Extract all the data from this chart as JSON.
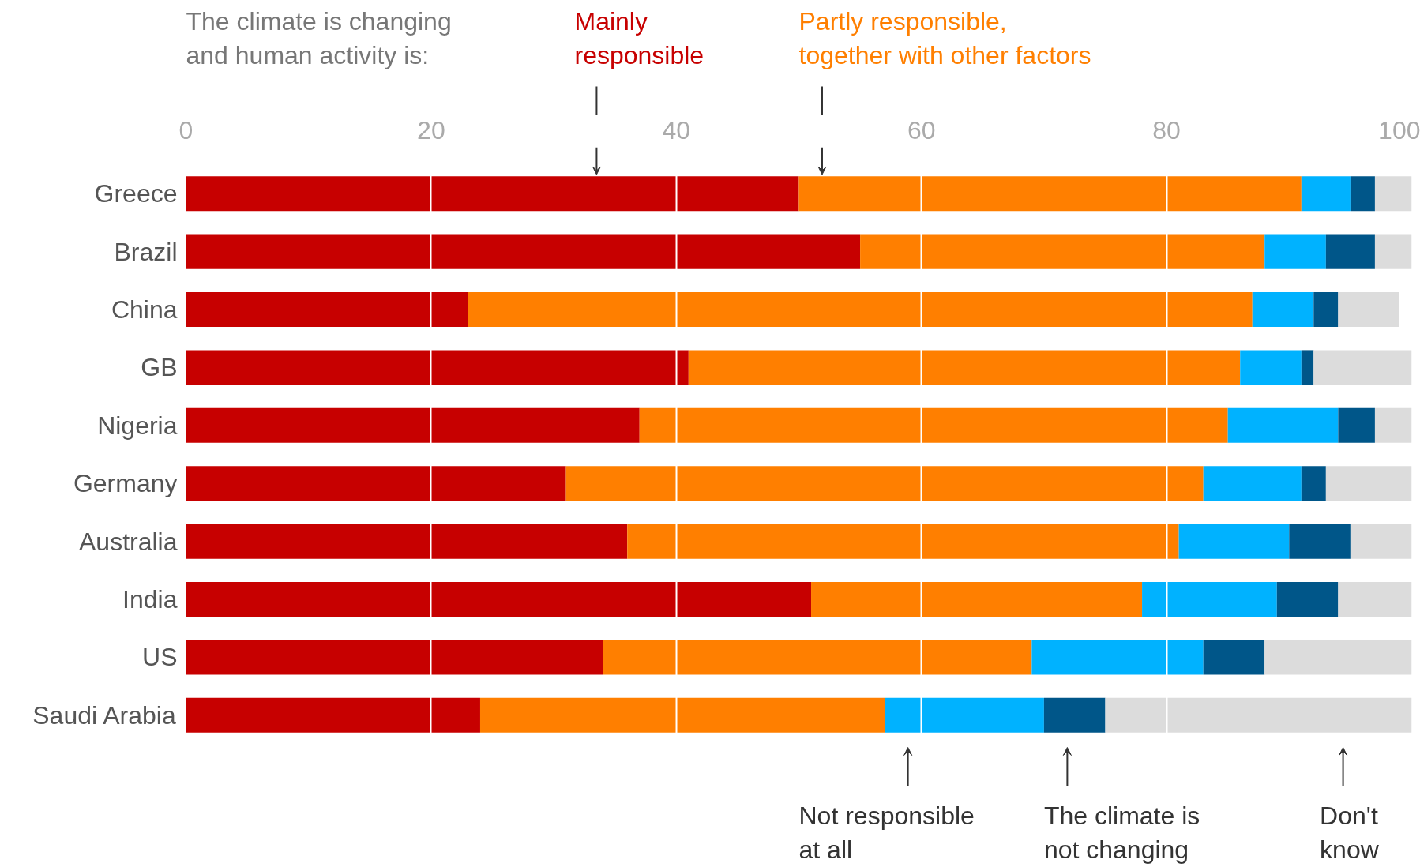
{
  "chart_data": {
    "type": "bar",
    "orientation": "horizontal",
    "stacked": true,
    "legend": false,
    "grid": "x",
    "legend_title": "The climate is changing and human activity is:",
    "categories": [
      "Greece",
      "Brazil",
      "China",
      "GB",
      "Nigeria",
      "Germany",
      "Australia",
      "India",
      "US",
      "Saudi Arabia"
    ],
    "xlim": [
      0,
      100
    ],
    "xticks": [
      0,
      20,
      40,
      60,
      80,
      100
    ],
    "series": [
      {
        "name": "Mainly responsible",
        "color": "#c70000",
        "values": [
          50,
          55,
          23,
          41,
          37,
          31,
          36,
          51,
          34,
          24
        ]
      },
      {
        "name": "Partly responsible, together with other factors",
        "color": "#ff7f00",
        "values": [
          41,
          33,
          64,
          45,
          48,
          52,
          45,
          27,
          35,
          33
        ]
      },
      {
        "name": "Not responsible at all",
        "color": "#00b2ff",
        "values": [
          4,
          5,
          5,
          5,
          9,
          8,
          9,
          11,
          14,
          13
        ]
      },
      {
        "name": "The climate is not changing",
        "color": "#005689",
        "values": [
          2,
          4,
          2,
          1,
          3,
          2,
          5,
          5,
          5,
          5
        ]
      },
      {
        "name": "Don't know",
        "color": "#dcdcdc",
        "values": [
          3,
          3,
          5,
          8,
          3,
          7,
          5,
          6,
          12,
          25
        ]
      }
    ]
  }
}
